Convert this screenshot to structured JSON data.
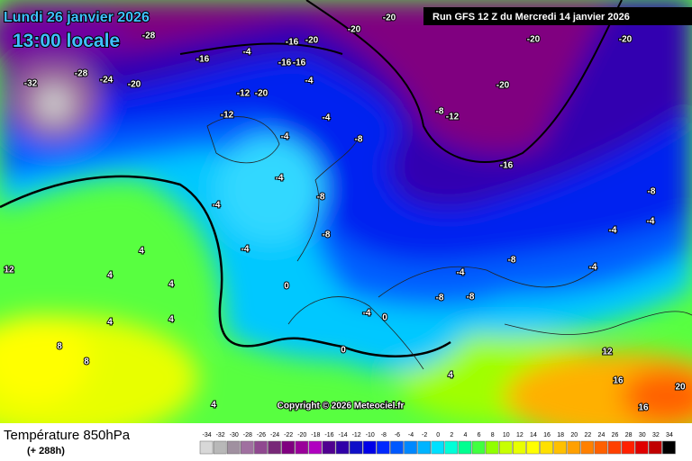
{
  "header": {
    "date": "Lundi 26 janvier 2026",
    "time": "13:00 locale",
    "run": "Run GFS 12 Z du Mercredi 14 janvier 2026"
  },
  "map": {
    "copyright": "Copyright © 2026 Meteociel.fr",
    "contour_labels": [
      -28,
      -16,
      -4,
      -16,
      -20,
      -20,
      -20,
      -16,
      -16,
      -4,
      -20,
      -24,
      -28,
      -32,
      -12,
      -20,
      -12,
      -4,
      -4,
      -8,
      -8,
      -12,
      -20,
      -20,
      -20,
      -16,
      -4,
      -4,
      -8,
      -8,
      -4,
      0,
      -4,
      0,
      -8,
      -8,
      -4,
      -8,
      -8,
      -4,
      -4,
      -4,
      4,
      4,
      4,
      4,
      4,
      8,
      8,
      12,
      0,
      4,
      4,
      16,
      16,
      12,
      20
    ]
  },
  "footer": {
    "title": "Température 850hPa",
    "lead": "(+ 288h)"
  },
  "legend": {
    "values": [
      -34,
      -32,
      -30,
      -28,
      -26,
      -24,
      -22,
      -20,
      -18,
      -16,
      -14,
      -12,
      -10,
      -8,
      -6,
      -4,
      -2,
      0,
      2,
      4,
      6,
      8,
      10,
      12,
      14,
      16,
      18,
      20,
      22,
      24,
      26,
      28,
      30,
      32,
      34
    ],
    "colors": [
      "#d8d8d8",
      "#b8b8b8",
      "#a090a0",
      "#a070a0",
      "#904890",
      "#782878",
      "#800080",
      "#9a009a",
      "#b000c0",
      "#500090",
      "#3000a8",
      "#1010c8",
      "#0000e8",
      "#0028ff",
      "#0058ff",
      "#0088ff",
      "#00b4ff",
      "#00e0ff",
      "#00ffd8",
      "#00ff90",
      "#40ff40",
      "#90ff00",
      "#c8ff00",
      "#e8ff00",
      "#ffff00",
      "#ffe000",
      "#ffc000",
      "#ffa000",
      "#ff8000",
      "#ff6000",
      "#ff4000",
      "#ff2000",
      "#e00000",
      "#c00000",
      "#000000"
    ]
  }
}
